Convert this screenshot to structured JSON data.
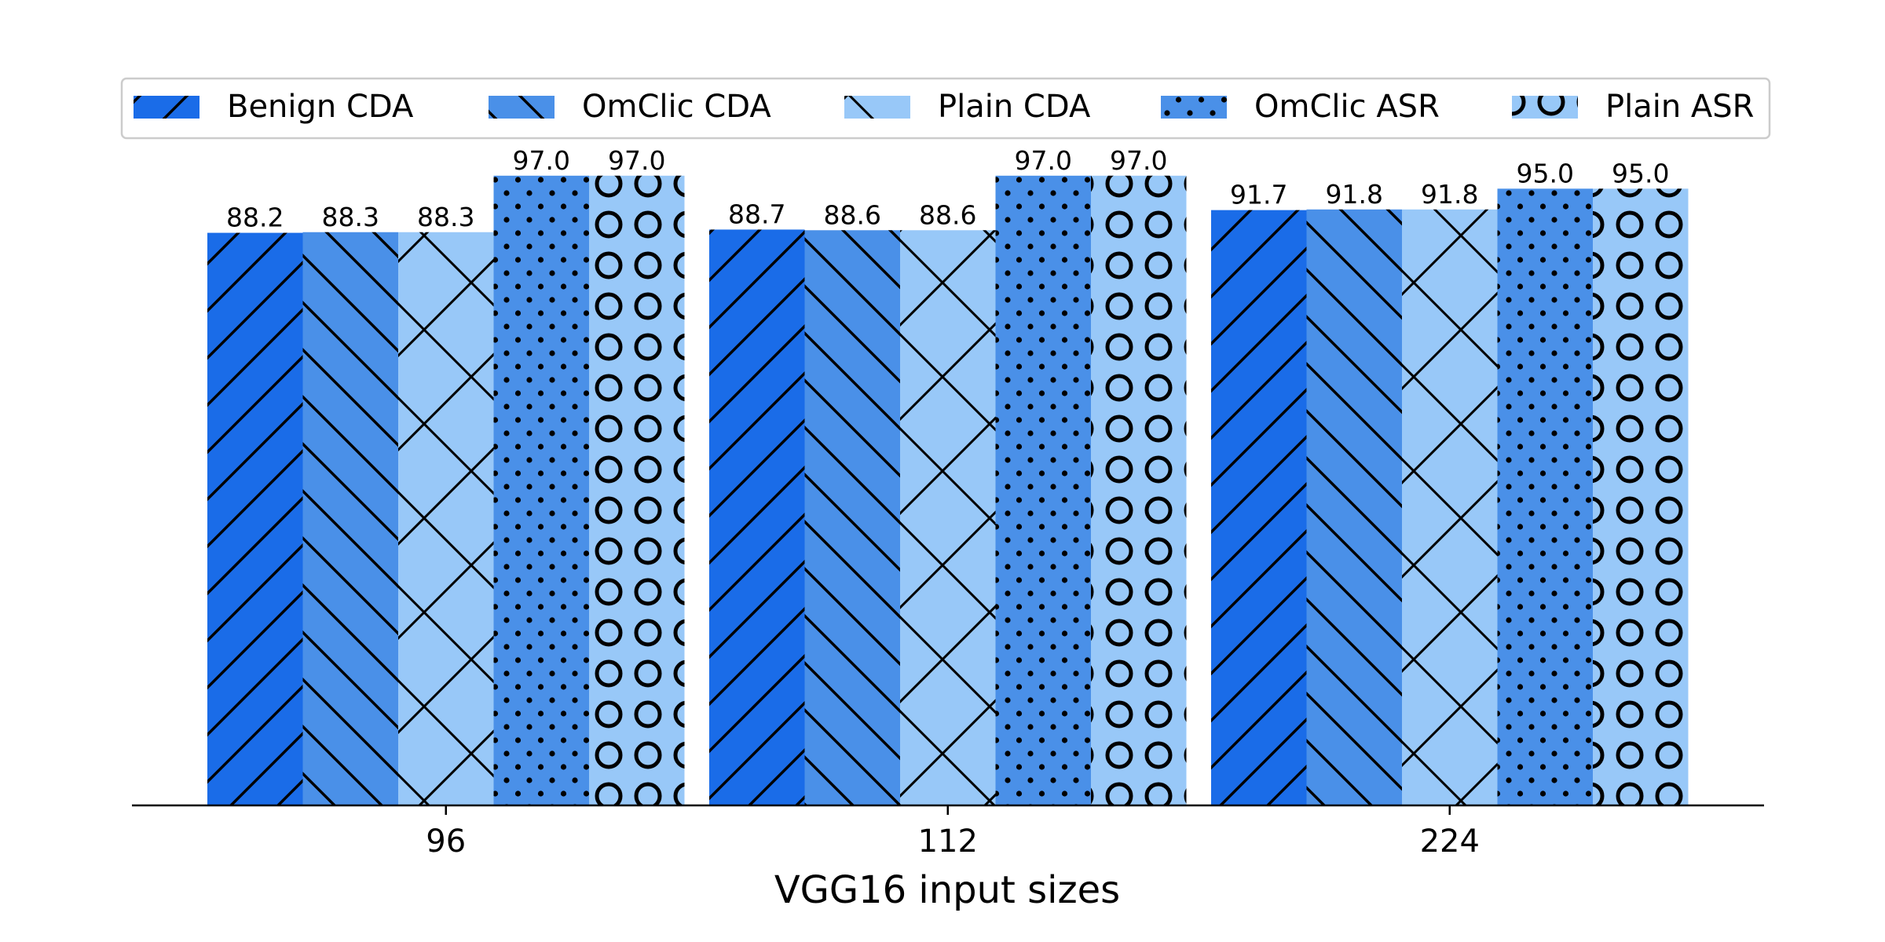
{
  "chart_data": {
    "type": "bar",
    "title": "",
    "xlabel": "VGG16 input sizes",
    "ylabel": "",
    "ylim": [
      0,
      100
    ],
    "grid": false,
    "legend_placement": "top",
    "categories": [
      "96",
      "112",
      "224"
    ],
    "series": [
      {
        "name": "Benign CDA",
        "values": [
          88.2,
          88.7,
          91.7
        ],
        "color": "#1a6ce8",
        "pattern": "forward-diagonal"
      },
      {
        "name": "OmClic CDA",
        "values": [
          88.3,
          88.6,
          91.8
        ],
        "color": "#4a90e8",
        "pattern": "back-diagonal"
      },
      {
        "name": "Plain CDA",
        "values": [
          88.3,
          88.6,
          91.8
        ],
        "color": "#98c8f8",
        "pattern": "crosshatch"
      },
      {
        "name": "OmClic ASR",
        "values": [
          97.0,
          97.0,
          95.0
        ],
        "color": "#4a90e8",
        "pattern": "dots"
      },
      {
        "name": "Plain ASR",
        "values": [
          97.0,
          97.0,
          95.0
        ],
        "color": "#98c8f8",
        "pattern": "circles"
      }
    ],
    "value_labels": [
      [
        "88.2",
        "88.7",
        "91.7"
      ],
      [
        "88.3",
        "88.6",
        "91.8"
      ],
      [
        "88.3",
        "88.6",
        "91.8"
      ],
      [
        "97.0",
        "97.0",
        "95.0"
      ],
      [
        "97.0",
        "97.0",
        "95.0"
      ]
    ]
  }
}
